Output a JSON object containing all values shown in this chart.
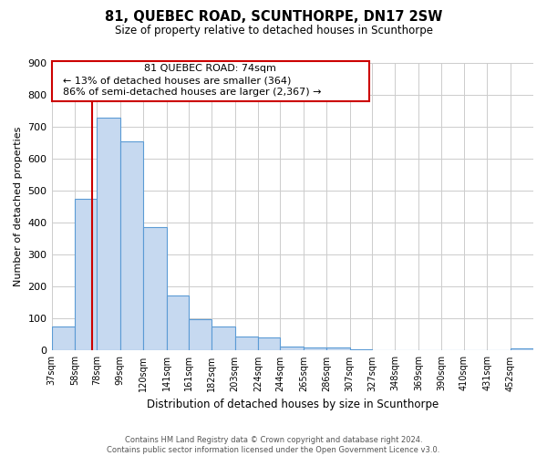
{
  "title": "81, QUEBEC ROAD, SCUNTHORPE, DN17 2SW",
  "subtitle": "Size of property relative to detached houses in Scunthorpe",
  "xlabel": "Distribution of detached houses by size in Scunthorpe",
  "ylabel": "Number of detached properties",
  "bar_labels": [
    "37sqm",
    "58sqm",
    "78sqm",
    "99sqm",
    "120sqm",
    "141sqm",
    "161sqm",
    "182sqm",
    "203sqm",
    "224sqm",
    "244sqm",
    "265sqm",
    "286sqm",
    "307sqm",
    "327sqm",
    "348sqm",
    "369sqm",
    "390sqm",
    "410sqm",
    "431sqm",
    "452sqm"
  ],
  "bar_values": [
    75,
    475,
    730,
    655,
    385,
    172,
    97,
    75,
    43,
    40,
    12,
    10,
    9,
    5,
    0,
    0,
    0,
    0,
    0,
    0,
    7
  ],
  "bar_color": "#c6d9f0",
  "bar_edge_color": "#5b9bd5",
  "ylim": [
    0,
    900
  ],
  "yticks": [
    0,
    100,
    200,
    300,
    400,
    500,
    600,
    700,
    800,
    900
  ],
  "bin_edges": [
    37,
    58,
    78,
    99,
    120,
    141,
    161,
    182,
    203,
    224,
    244,
    265,
    286,
    307,
    327,
    348,
    369,
    390,
    410,
    431,
    452,
    473
  ],
  "property_line_x": 74,
  "property_line_color": "#cc0000",
  "annotation_title": "81 QUEBEC ROAD: 74sqm",
  "annotation_line1": "← 13% of detached houses are smaller (364)",
  "annotation_line2": "86% of semi-detached houses are larger (2,367) →",
  "footer_line1": "Contains HM Land Registry data © Crown copyright and database right 2024.",
  "footer_line2": "Contains public sector information licensed under the Open Government Licence v3.0.",
  "bg_color": "#ffffff",
  "grid_color": "#cccccc"
}
